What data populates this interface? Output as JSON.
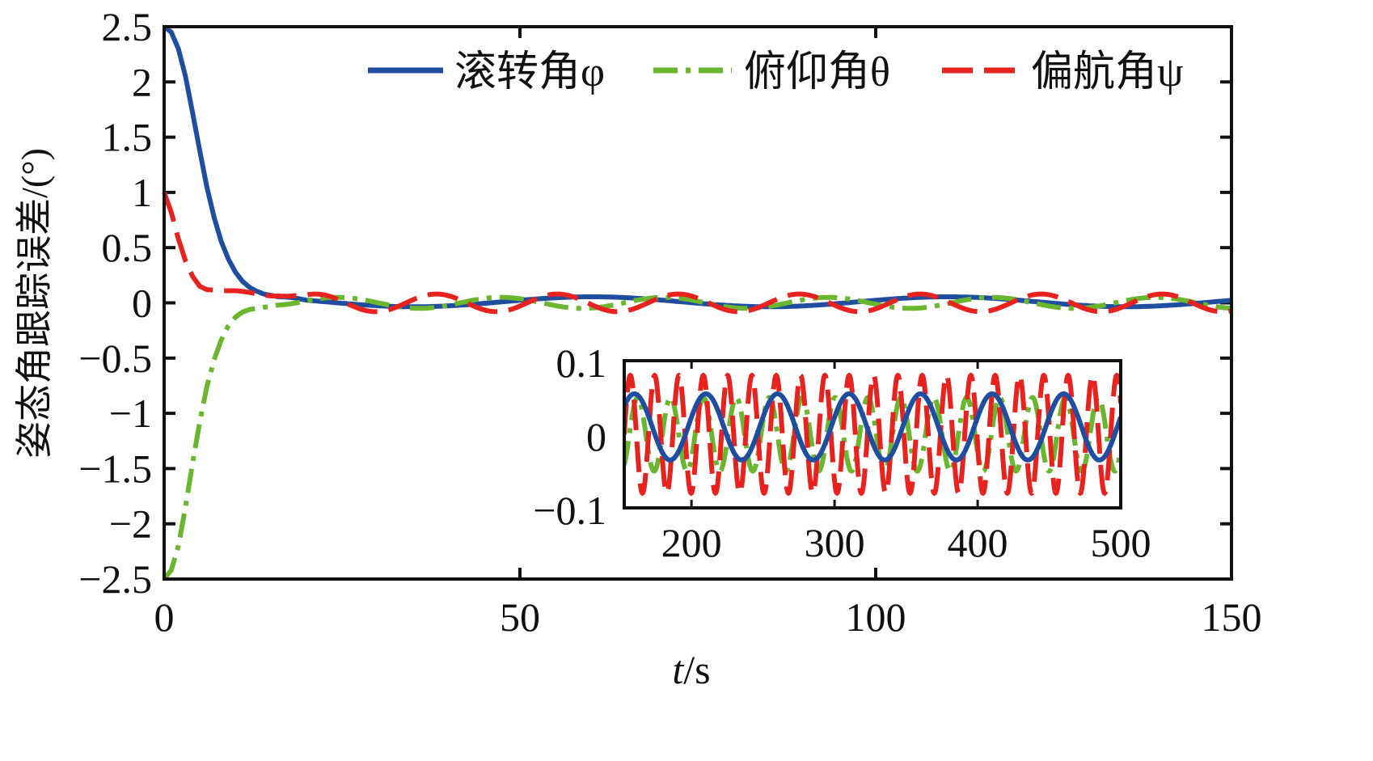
{
  "chart_data": {
    "type": "line",
    "title": "",
    "xlabel_italic": "t",
    "xlabel_unit": "/s",
    "ylabel": "姿态角跟踪误差/(°)",
    "xlim": [
      0,
      150
    ],
    "ylim": [
      -2.5,
      2.5
    ],
    "xticks": [
      "0",
      "50",
      "100",
      "150"
    ],
    "xtick_values": [
      0,
      50,
      100,
      150
    ],
    "yticks": [
      "2.5",
      "2",
      "1.5",
      "1",
      "0.5",
      "0",
      "−0.5",
      "−1",
      "−1.5",
      "−2",
      "−2.5"
    ],
    "ytick_values": [
      2.5,
      2,
      1.5,
      1,
      0.5,
      0,
      -0.5,
      -1,
      -1.5,
      -2,
      -2.5
    ],
    "grid": false,
    "legend_placement": "top-right",
    "series": [
      {
        "name": "滚转角φ",
        "color": "#1f4ea0",
        "style": "solid",
        "transient": [
          [
            0,
            2.5
          ],
          [
            1,
            2.45
          ],
          [
            2,
            2.3
          ],
          [
            3,
            2.05
          ],
          [
            4,
            1.72
          ],
          [
            5,
            1.38
          ],
          [
            6,
            1.05
          ],
          [
            7,
            0.78
          ],
          [
            8,
            0.56
          ],
          [
            9,
            0.4
          ],
          [
            10,
            0.28
          ],
          [
            11,
            0.19
          ],
          [
            12,
            0.13
          ],
          [
            13,
            0.09
          ],
          [
            14,
            0.06
          ],
          [
            16,
            0.03
          ],
          [
            18,
            0.02
          ],
          [
            20,
            0.0
          ]
        ],
        "steady": {
          "mean": 0.01,
          "amplitude": 0.045,
          "period": 50,
          "phase": 0.3
        }
      },
      {
        "name": "俯仰角θ",
        "color": "#6ab62e",
        "style": "dashdot",
        "transient": [
          [
            0,
            -2.5
          ],
          [
            1,
            -2.42
          ],
          [
            2,
            -2.2
          ],
          [
            3,
            -1.85
          ],
          [
            4,
            -1.45
          ],
          [
            5,
            -1.08
          ],
          [
            6,
            -0.76
          ],
          [
            7,
            -0.52
          ],
          [
            8,
            -0.34
          ],
          [
            9,
            -0.21
          ],
          [
            10,
            -0.13
          ],
          [
            11,
            -0.08
          ],
          [
            12,
            -0.05
          ],
          [
            14,
            -0.02
          ],
          [
            16,
            0.0
          ],
          [
            20,
            0.0
          ]
        ],
        "steady": {
          "mean": 0,
          "amplitude": 0.05,
          "period": 23,
          "phase": 1.2
        }
      },
      {
        "name": "偏航角ψ",
        "color": "#e8221e",
        "style": "dashed",
        "transient": [
          [
            0,
            1.0
          ],
          [
            1,
            0.82
          ],
          [
            2,
            0.58
          ],
          [
            3,
            0.38
          ],
          [
            4,
            0.24
          ],
          [
            5,
            0.15
          ],
          [
            6,
            0.12
          ],
          [
            8,
            0.11
          ],
          [
            12,
            0.11
          ],
          [
            14,
            0.1
          ],
          [
            16,
            0.08
          ],
          [
            18,
            0.04
          ],
          [
            20,
            0.0
          ]
        ],
        "steady": {
          "mean": 0,
          "amplitude": 0.08,
          "period": 17,
          "phase": 0.0
        }
      }
    ],
    "inset": {
      "xlim": [
        153,
        500
      ],
      "ylim": [
        -0.1,
        0.1
      ],
      "xticks": [
        "200",
        "300",
        "400",
        "500"
      ],
      "xtick_values": [
        200,
        300,
        400,
        500
      ],
      "yticks": [
        "0.1",
        "0",
        "−0.1"
      ],
      "ytick_values": [
        0.1,
        0,
        -0.1
      ]
    }
  }
}
